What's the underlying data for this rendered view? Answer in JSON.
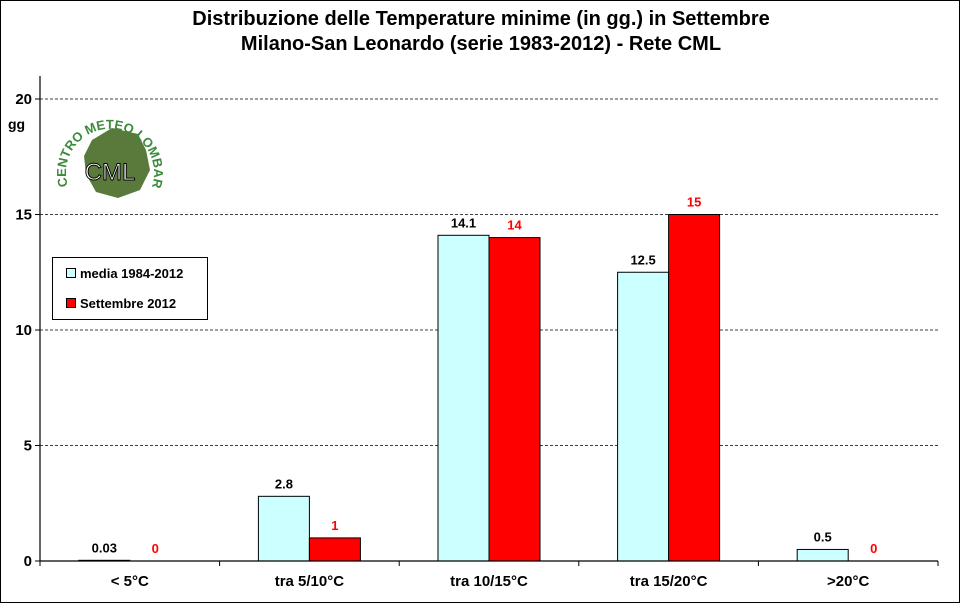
{
  "titles": {
    "line1": "Distribuzione  delle  Temperature  minime  (in gg.) in Settembre",
    "line2": "Milano-San  Leonardo  (serie  1983-2012)  - Rete CML"
  },
  "logo": {
    "text_ring": "CENTRO METEO LOMBARDO",
    "center": "CML"
  },
  "colors": {
    "media": "#ccffff",
    "settembre": "#ff0000",
    "settembre_label": "#ff0000",
    "grid": "#000000"
  },
  "chart_data": {
    "type": "bar",
    "title": "Distribuzione  delle  Temperature  minime  (in gg.) in Settembre\nMilano-San  Leonardo  (serie  1983-2012)  - Rete CML",
    "ylabel": "gg",
    "xlabel": "",
    "ylim": [
      0,
      20
    ],
    "yticks": [
      0,
      5,
      10,
      15,
      20
    ],
    "grid": true,
    "legend_position": "left",
    "categories": [
      "< 5°C",
      "tra 5/10°C",
      "tra 10/15°C",
      "tra 15/20°C",
      ">20°C"
    ],
    "series": [
      {
        "name": "media 1984-2012",
        "values": [
          0.03,
          2.8,
          14.1,
          12.5,
          0.5
        ],
        "labels": [
          "0.03",
          "2.8",
          "14.1",
          "12.5",
          "0.5"
        ]
      },
      {
        "name": "Settembre 2012",
        "values": [
          0,
          1,
          14,
          15,
          0
        ],
        "labels": [
          "0",
          "1",
          "14",
          "15",
          "0"
        ]
      }
    ]
  }
}
